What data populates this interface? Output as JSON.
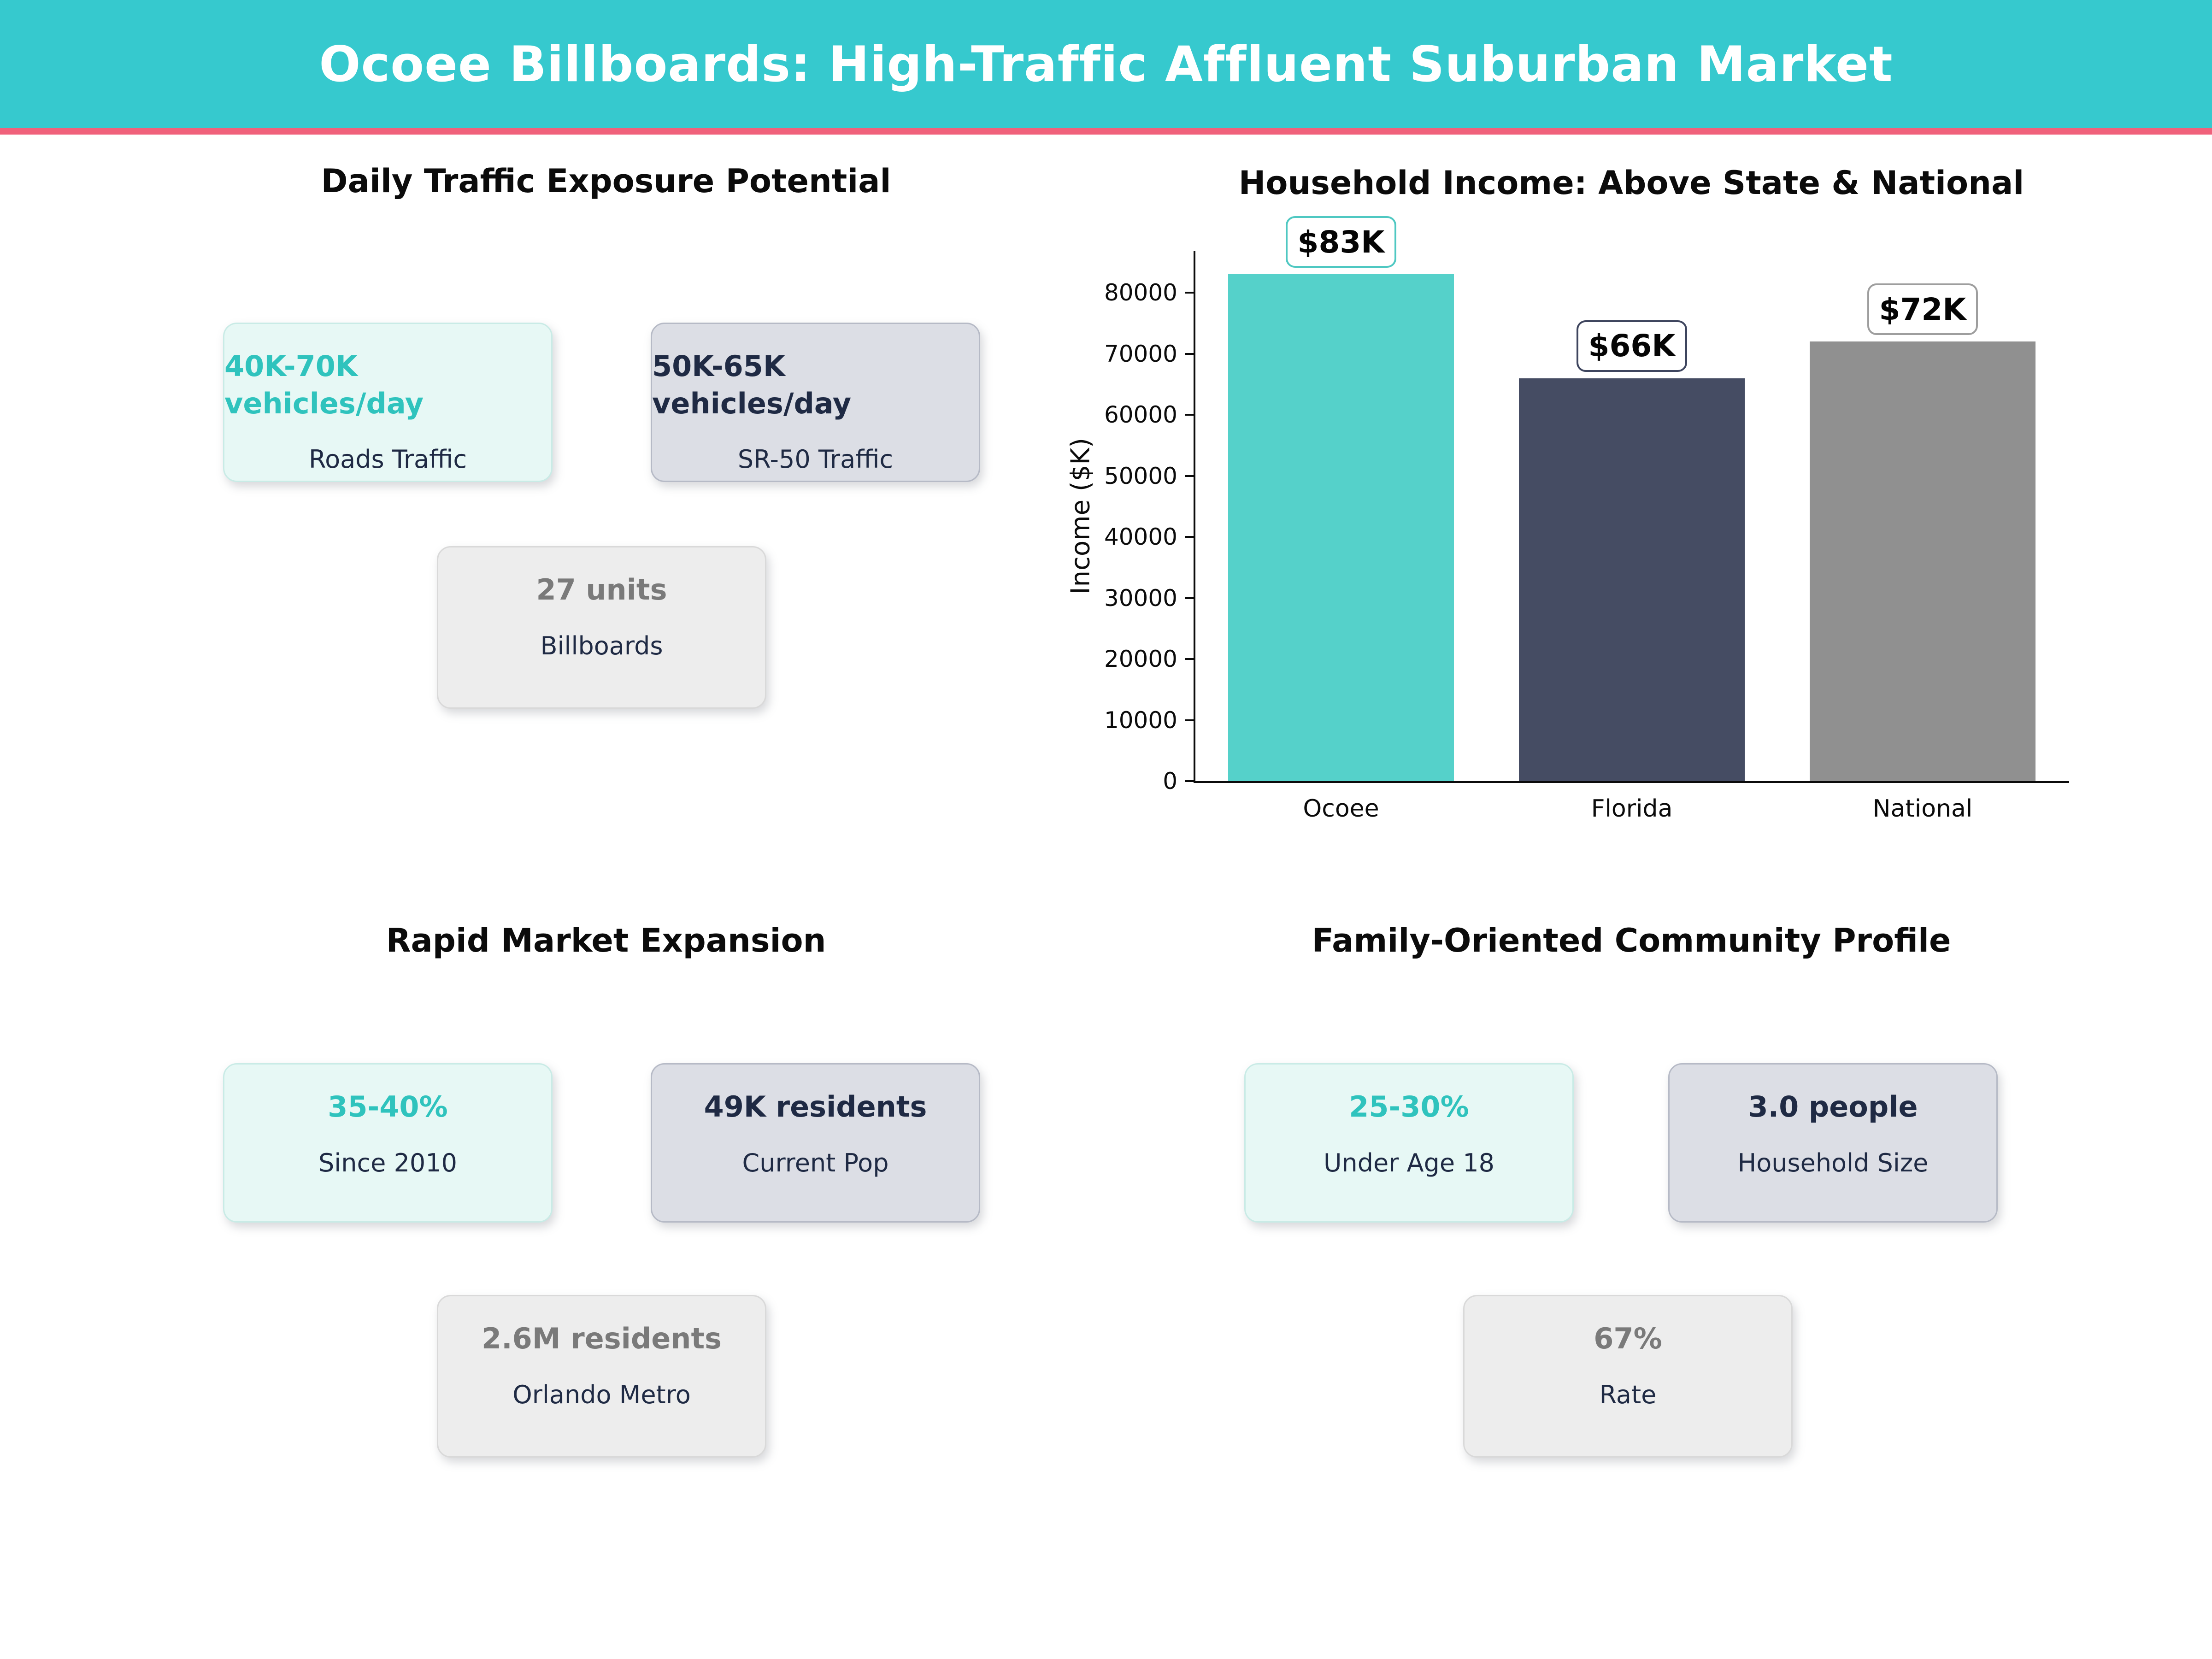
{
  "header": {
    "title": "Ocoee Billboards: High-Traffic Affluent Suburban Market"
  },
  "colors": {
    "header_bg": "#36C9CE",
    "divider": "#F0617B",
    "teal_accent": "#2FC3BD",
    "navy_text": "#1F2A44",
    "gray_text": "#7A7A7A",
    "teal_card_bg": "#E7F8F5",
    "slate_card_bg": "#DCDEE5",
    "light_card_bg": "#EDEDED"
  },
  "sections": {
    "traffic": {
      "title": "Daily Traffic Exposure Potential",
      "cards": [
        {
          "value": "40K-70K vehicles/day",
          "label": "Roads Traffic"
        },
        {
          "value": "50K-65K vehicles/day",
          "label": "SR-50 Traffic"
        },
        {
          "value": "27 units",
          "label": "Billboards"
        }
      ]
    },
    "expansion": {
      "title": "Rapid Market Expansion",
      "cards": [
        {
          "value": "35-40%",
          "label": "Since 2010"
        },
        {
          "value": "49K residents",
          "label": "Current Pop"
        },
        {
          "value": "2.6M residents",
          "label": "Orlando Metro"
        }
      ]
    },
    "community": {
      "title": "Family-Oriented Community Profile",
      "cards": [
        {
          "value": "25-30%",
          "label": "Under Age 18"
        },
        {
          "value": "3.0 people",
          "label": "Household Size"
        },
        {
          "value": "67%",
          "label": "Rate"
        }
      ]
    }
  },
  "chart_data": {
    "type": "bar",
    "title": "Household Income: Above State & National",
    "xlabel": "",
    "ylabel": "Income ($K)",
    "categories": [
      "Ocoee",
      "Florida",
      "National"
    ],
    "values": [
      83000,
      66000,
      72000
    ],
    "data_labels": [
      "$83K",
      "$66K",
      "$72K"
    ],
    "bar_colors": [
      "#55D1CA",
      "#454C63",
      "#909090"
    ],
    "annotation_border_colors": [
      "#4FC8C2",
      "#3E455E",
      "#9E9E9E"
    ],
    "ylim": [
      0,
      86500
    ],
    "yticks": [
      0,
      10000,
      20000,
      30000,
      40000,
      50000,
      60000,
      70000,
      80000
    ],
    "grid": false,
    "legend": "none"
  }
}
